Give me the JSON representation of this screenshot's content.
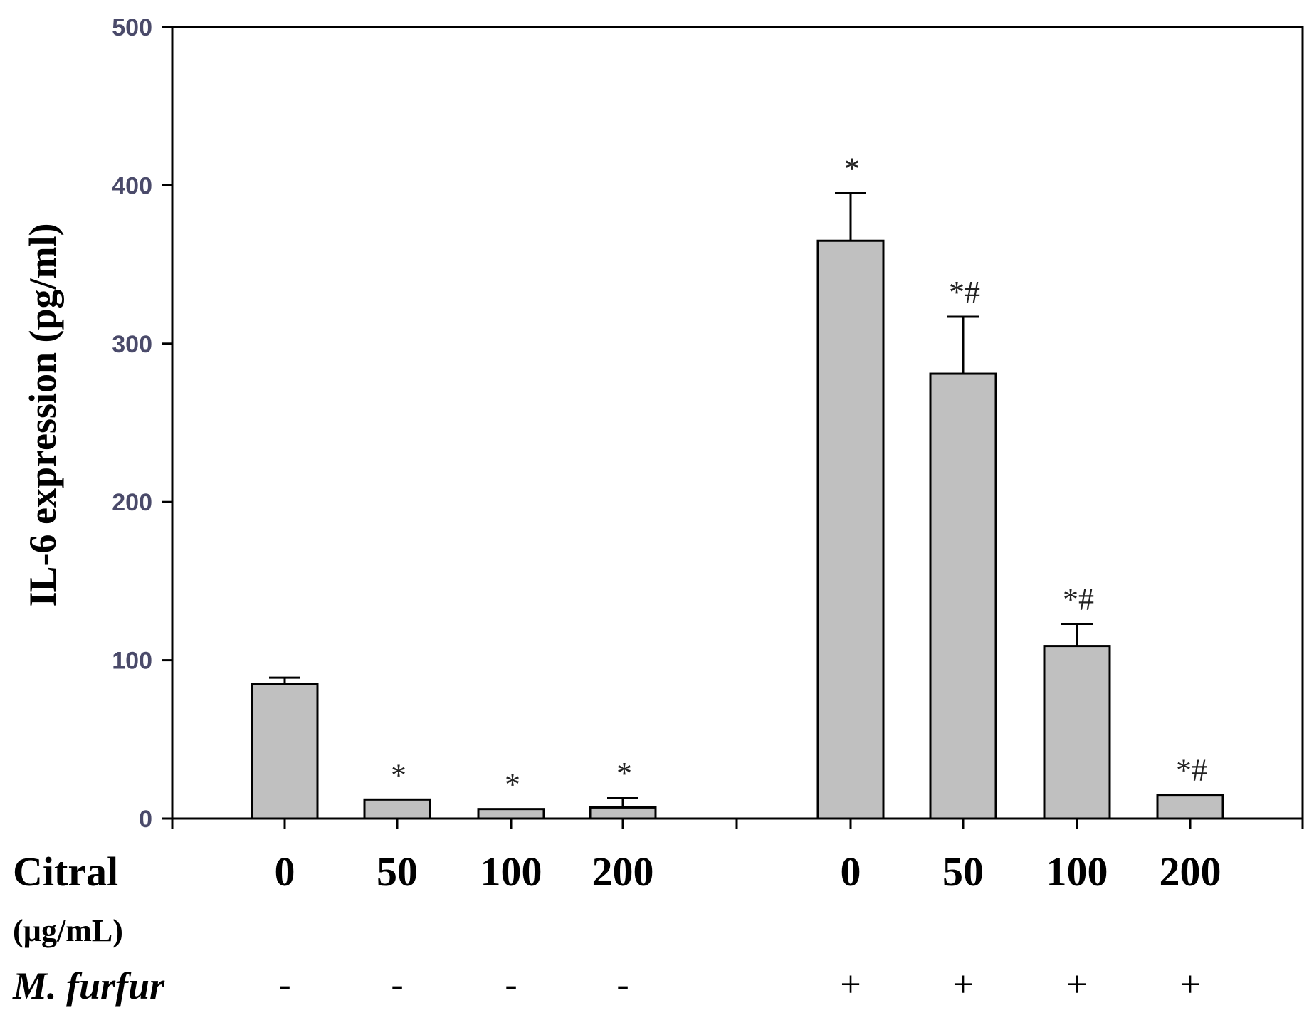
{
  "chart_data": {
    "type": "bar",
    "ylabel": "IL-6 expression (pg/ml)",
    "ylim": [
      0,
      500
    ],
    "yticks": [
      "0",
      "100",
      "200",
      "300",
      "400",
      "500"
    ],
    "grid": false,
    "bar_color": "#c0c0c0",
    "row_labels": {
      "citral": "Citral",
      "unit": "(µg/mL)",
      "furfur": "M. furfur"
    },
    "bars": [
      {
        "citral": "0",
        "furfur": "-",
        "value": 85,
        "error": 4,
        "annotation": ""
      },
      {
        "citral": "50",
        "furfur": "-",
        "value": 12,
        "error": 0,
        "annotation": "*"
      },
      {
        "citral": "100",
        "furfur": "-",
        "value": 6,
        "error": 0,
        "annotation": "*"
      },
      {
        "citral": "200",
        "furfur": "-",
        "value": 7,
        "error": 6,
        "annotation": "*"
      },
      {
        "citral": "0",
        "furfur": "+",
        "value": 365,
        "error": 30,
        "annotation": "*"
      },
      {
        "citral": "50",
        "furfur": "+",
        "value": 281,
        "error": 36,
        "annotation": "*#"
      },
      {
        "citral": "100",
        "furfur": "+",
        "value": 109,
        "error": 14,
        "annotation": "*#"
      },
      {
        "citral": "200",
        "furfur": "+",
        "value": 15,
        "error": 0,
        "annotation": "*#"
      }
    ]
  }
}
